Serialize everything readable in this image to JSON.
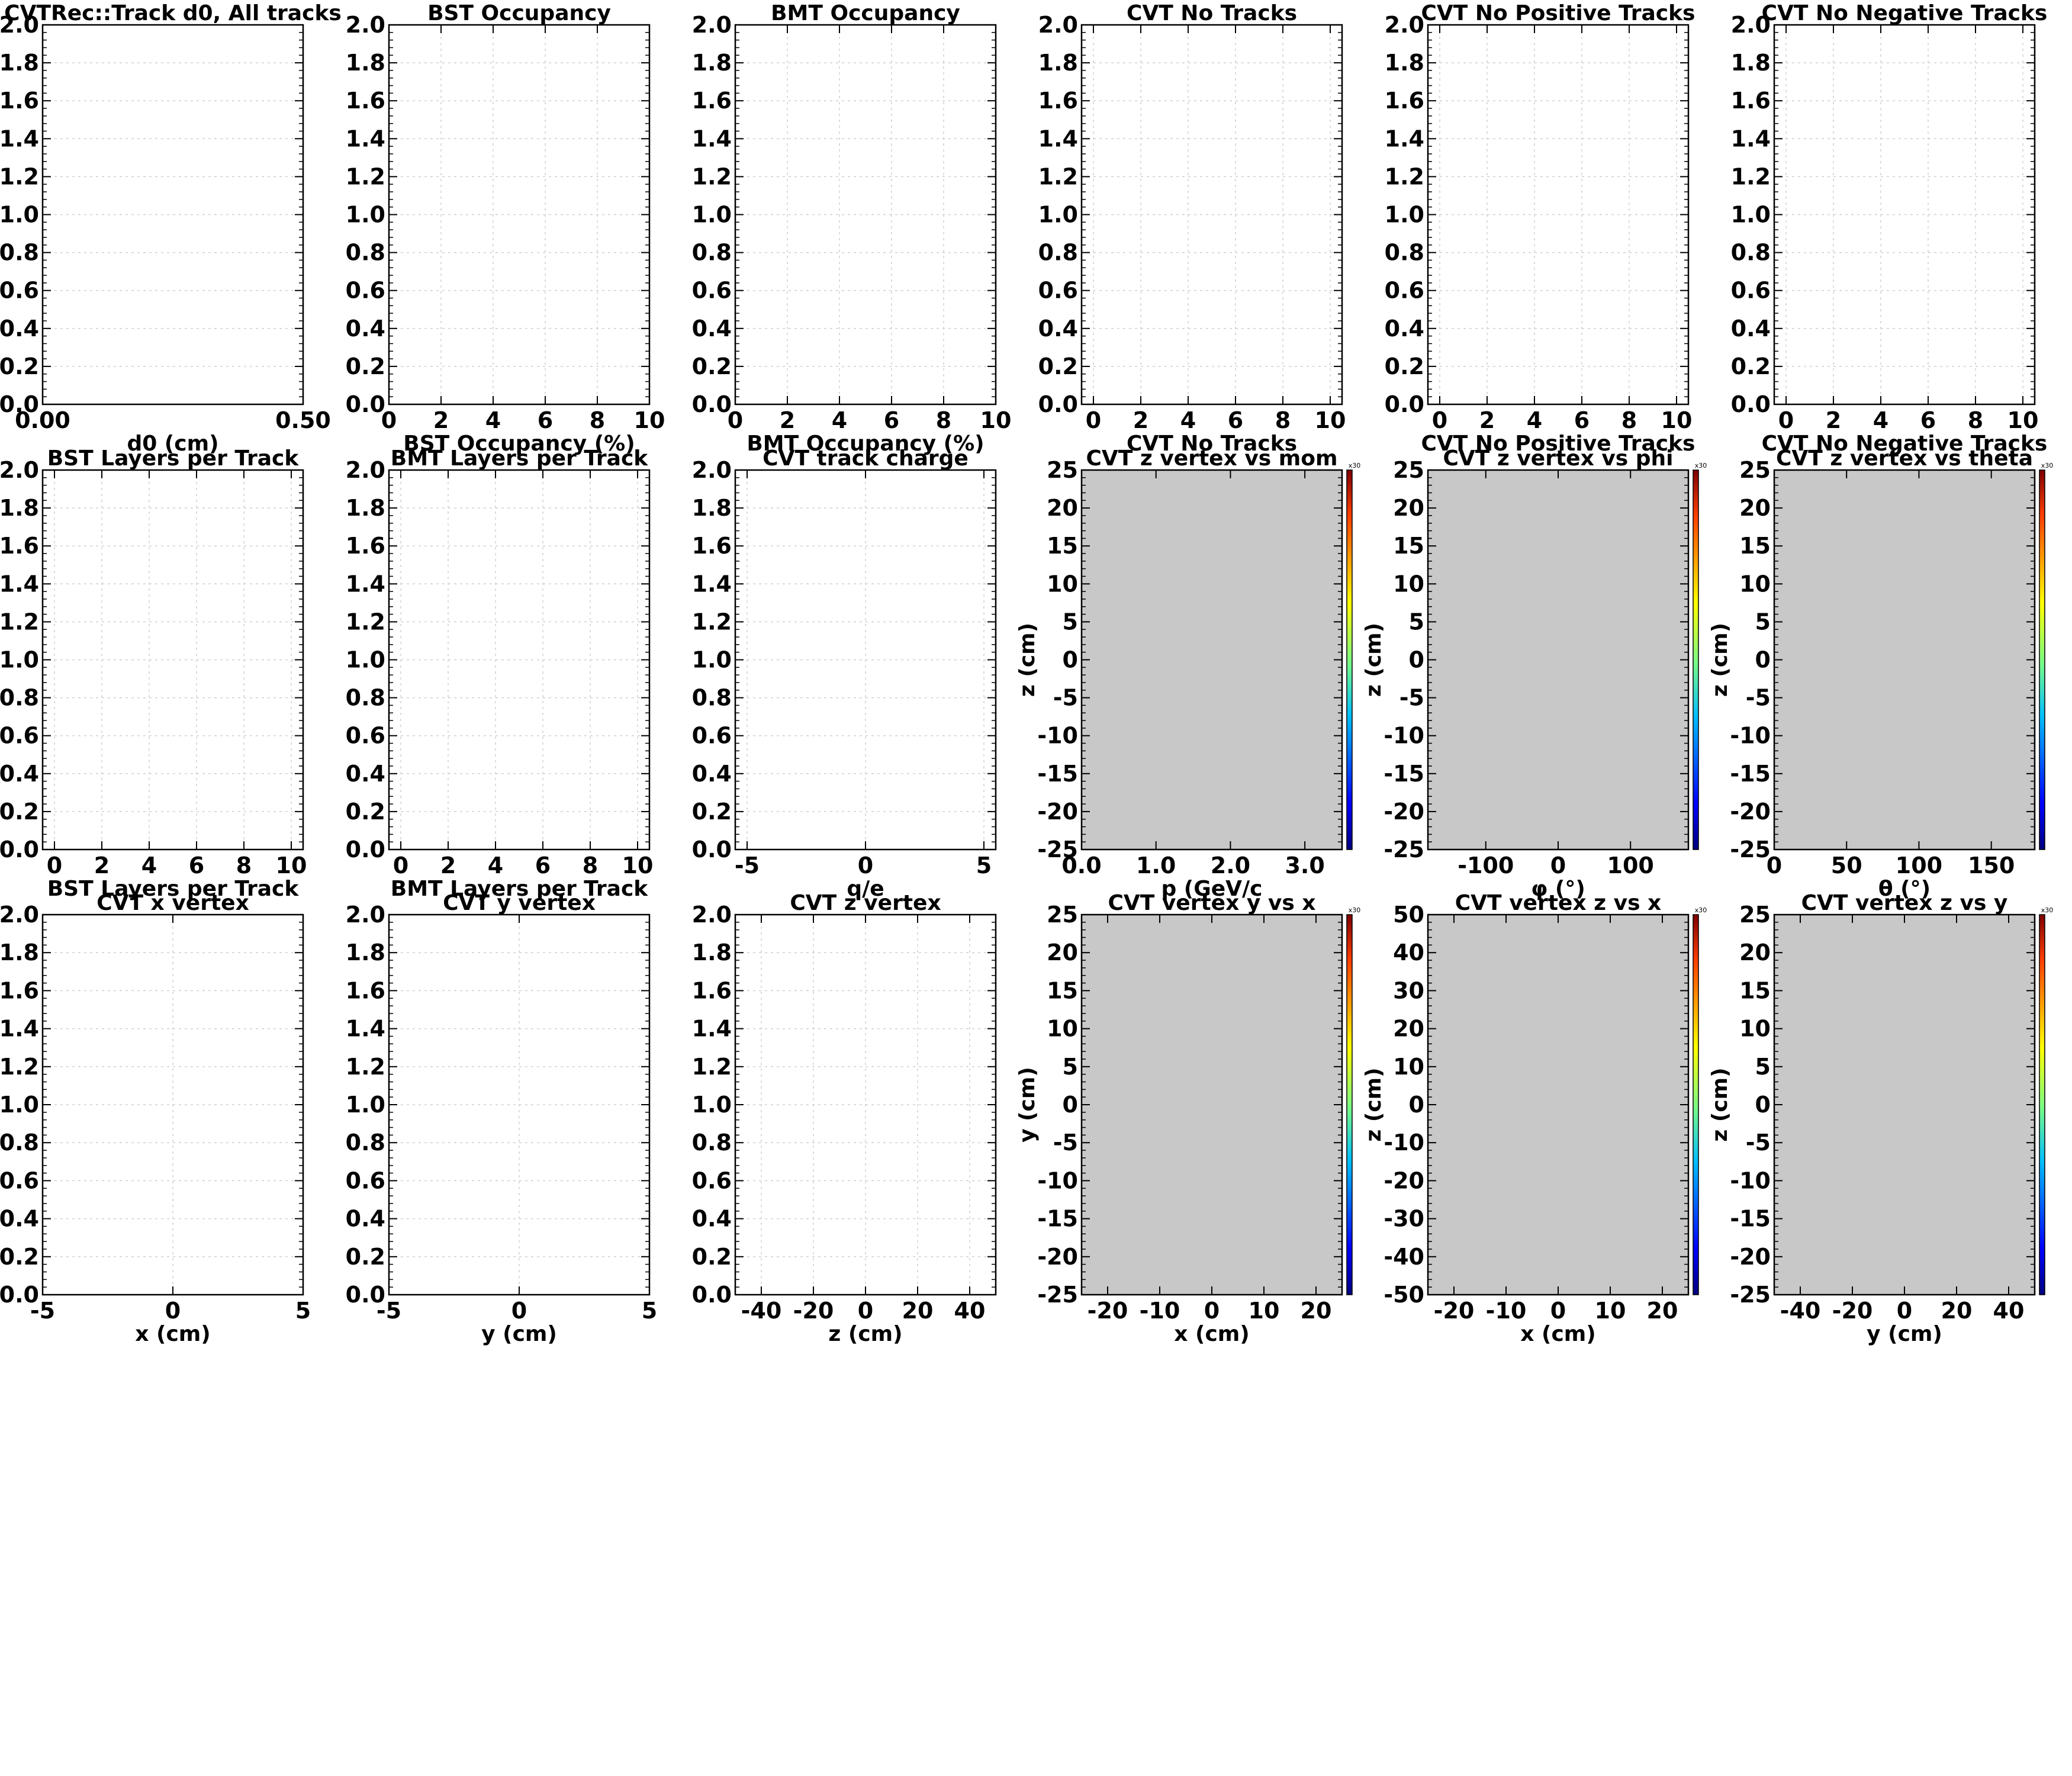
{
  "chart_data": [
    {
      "type": "bar",
      "title": "CVTRec::Track d0, All tracks",
      "xlabel": "d0 (cm)",
      "ylabel": "",
      "xlim": [
        0,
        0.5
      ],
      "ylim": [
        0,
        2
      ],
      "xticks": [
        "0.00",
        "0.50"
      ],
      "yticks": [
        "0.0",
        "0.2",
        "0.4",
        "0.6",
        "0.8",
        "1.0",
        "1.2",
        "1.4",
        "1.6",
        "1.8",
        "2.0"
      ],
      "grid": true,
      "values": []
    },
    {
      "type": "bar",
      "title": "BST Occupancy",
      "xlabel": "BST Occupancy (%)",
      "ylabel": "",
      "xlim": [
        0,
        10
      ],
      "ylim": [
        0,
        2
      ],
      "xticks": [
        "0",
        "2",
        "4",
        "6",
        "8",
        "10"
      ],
      "yticks": [
        "0.0",
        "0.2",
        "0.4",
        "0.6",
        "0.8",
        "1.0",
        "1.2",
        "1.4",
        "1.6",
        "1.8",
        "2.0"
      ],
      "grid": true,
      "values": []
    },
    {
      "type": "bar",
      "title": "BMT Occupancy",
      "xlabel": "BMT Occupancy (%)",
      "ylabel": "",
      "xlim": [
        0,
        10
      ],
      "ylim": [
        0,
        2
      ],
      "xticks": [
        "0",
        "2",
        "4",
        "6",
        "8",
        "10"
      ],
      "yticks": [
        "0.0",
        "0.2",
        "0.4",
        "0.6",
        "0.8",
        "1.0",
        "1.2",
        "1.4",
        "1.6",
        "1.8",
        "2.0"
      ],
      "grid": true,
      "values": []
    },
    {
      "type": "bar",
      "title": "CVT No Tracks",
      "xlabel": "CVT No Tracks",
      "ylabel": "",
      "xlim": [
        -0.5,
        10.5
      ],
      "ylim": [
        0,
        2
      ],
      "xticks": [
        "0",
        "2",
        "4",
        "6",
        "8",
        "10"
      ],
      "yticks": [
        "0.0",
        "0.2",
        "0.4",
        "0.6",
        "0.8",
        "1.0",
        "1.2",
        "1.4",
        "1.6",
        "1.8",
        "2.0"
      ],
      "grid": true,
      "values": []
    },
    {
      "type": "bar",
      "title": "CVT No Positive Tracks",
      "xlabel": "CVT No Positive Tracks",
      "ylabel": "",
      "xlim": [
        -0.5,
        10.5
      ],
      "ylim": [
        0,
        2
      ],
      "xticks": [
        "0",
        "2",
        "4",
        "6",
        "8",
        "10"
      ],
      "yticks": [
        "0.0",
        "0.2",
        "0.4",
        "0.6",
        "0.8",
        "1.0",
        "1.2",
        "1.4",
        "1.6",
        "1.8",
        "2.0"
      ],
      "grid": true,
      "values": []
    },
    {
      "type": "bar",
      "title": "CVT No Negative Tracks",
      "xlabel": "CVT No Negative Tracks",
      "ylabel": "",
      "xlim": [
        -0.5,
        10.5
      ],
      "ylim": [
        0,
        2
      ],
      "xticks": [
        "0",
        "2",
        "4",
        "6",
        "8",
        "10"
      ],
      "yticks": [
        "0.0",
        "0.2",
        "0.4",
        "0.6",
        "0.8",
        "1.0",
        "1.2",
        "1.4",
        "1.6",
        "1.8",
        "2.0"
      ],
      "grid": true,
      "values": []
    },
    {
      "type": "bar",
      "title": "BST Layers per Track",
      "xlabel": "BST Layers per Track",
      "ylabel": "",
      "xlim": [
        -0.5,
        10.5
      ],
      "ylim": [
        0,
        2
      ],
      "xticks": [
        "0",
        "2",
        "4",
        "6",
        "8",
        "10"
      ],
      "yticks": [
        "0.0",
        "0.2",
        "0.4",
        "0.6",
        "0.8",
        "1.0",
        "1.2",
        "1.4",
        "1.6",
        "1.8",
        "2.0"
      ],
      "grid": true,
      "values": []
    },
    {
      "type": "bar",
      "title": "BMT Layers per Track",
      "xlabel": "BMT Layers per Track",
      "ylabel": "",
      "xlim": [
        -0.5,
        10.5
      ],
      "ylim": [
        0,
        2
      ],
      "xticks": [
        "0",
        "2",
        "4",
        "6",
        "8",
        "10"
      ],
      "yticks": [
        "0.0",
        "0.2",
        "0.4",
        "0.6",
        "0.8",
        "1.0",
        "1.2",
        "1.4",
        "1.6",
        "1.8",
        "2.0"
      ],
      "grid": true,
      "values": []
    },
    {
      "type": "bar",
      "title": "CVT track charge",
      "xlabel": "q/e",
      "ylabel": "",
      "xlim": [
        -5.5,
        5.5
      ],
      "ylim": [
        0,
        2
      ],
      "xticks": [
        "-5",
        "0",
        "5"
      ],
      "yticks": [
        "0.0",
        "0.2",
        "0.4",
        "0.6",
        "0.8",
        "1.0",
        "1.2",
        "1.4",
        "1.6",
        "1.8",
        "2.0"
      ],
      "grid": true,
      "values": []
    },
    {
      "type": "heatmap",
      "title": "CVT z vertex vs mom",
      "xlabel": "p (GeV/c",
      "ylabel": "z (cm)",
      "xlim": [
        0,
        3.5
      ],
      "ylim": [
        -25,
        25
      ],
      "xticks": [
        "0.0",
        "1.0",
        "2.0",
        "3.0"
      ],
      "yticks": [
        "-25",
        "-20",
        "-15",
        "-10",
        "-5",
        "0",
        "5",
        "10",
        "15",
        "20",
        "25"
      ],
      "colorbar_label": "x30",
      "values": []
    },
    {
      "type": "heatmap",
      "title": "CVT z vertex vs phi",
      "xlabel": "φ (°)",
      "ylabel": "z (cm)",
      "xlim": [
        -180,
        180
      ],
      "ylim": [
        -25,
        25
      ],
      "xticks": [
        "-100",
        "0",
        "100"
      ],
      "yticks": [
        "-25",
        "-20",
        "-15",
        "-10",
        "-5",
        "0",
        "5",
        "10",
        "15",
        "20",
        "25"
      ],
      "colorbar_label": "x30",
      "values": []
    },
    {
      "type": "heatmap",
      "title": "CVT z vertex vs theta",
      "xlabel": "θ (°)",
      "ylabel": "z (cm)",
      "xlim": [
        0,
        180
      ],
      "ylim": [
        -25,
        25
      ],
      "xticks": [
        "0",
        "50",
        "100",
        "150"
      ],
      "yticks": [
        "-25",
        "-20",
        "-15",
        "-10",
        "-5",
        "0",
        "5",
        "10",
        "15",
        "20",
        "25"
      ],
      "colorbar_label": "x30",
      "values": []
    },
    {
      "type": "bar",
      "title": "CVT x vertex",
      "xlabel": "x (cm)",
      "ylabel": "",
      "xlim": [
        -5,
        5
      ],
      "ylim": [
        0,
        2
      ],
      "xticks": [
        "-5",
        "0",
        "5"
      ],
      "yticks": [
        "0.0",
        "0.2",
        "0.4",
        "0.6",
        "0.8",
        "1.0",
        "1.2",
        "1.4",
        "1.6",
        "1.8",
        "2.0"
      ],
      "grid": true,
      "values": []
    },
    {
      "type": "bar",
      "title": "CVT y vertex",
      "xlabel": "y (cm)",
      "ylabel": "",
      "xlim": [
        -5,
        5
      ],
      "ylim": [
        0,
        2
      ],
      "xticks": [
        "-5",
        "0",
        "5"
      ],
      "yticks": [
        "0.0",
        "0.2",
        "0.4",
        "0.6",
        "0.8",
        "1.0",
        "1.2",
        "1.4",
        "1.6",
        "1.8",
        "2.0"
      ],
      "grid": true,
      "values": []
    },
    {
      "type": "bar",
      "title": "CVT z vertex",
      "xlabel": "z (cm)",
      "ylabel": "",
      "xlim": [
        -50,
        50
      ],
      "ylim": [
        0,
        2
      ],
      "xticks": [
        "-40",
        "-20",
        "0",
        "20",
        "40"
      ],
      "yticks": [
        "0.0",
        "0.2",
        "0.4",
        "0.6",
        "0.8",
        "1.0",
        "1.2",
        "1.4",
        "1.6",
        "1.8",
        "2.0"
      ],
      "grid": true,
      "values": []
    },
    {
      "type": "heatmap",
      "title": "CVT vertex  y vs x",
      "xlabel": "x (cm)",
      "ylabel": "y (cm)",
      "xlim": [
        -25,
        25
      ],
      "ylim": [
        -25,
        25
      ],
      "xticks": [
        "-20",
        "-10",
        "0",
        "10",
        "20"
      ],
      "yticks": [
        "-25",
        "-20",
        "-15",
        "-10",
        "-5",
        "0",
        "5",
        "10",
        "15",
        "20",
        "25"
      ],
      "colorbar_label": "x30",
      "values": []
    },
    {
      "type": "heatmap",
      "title": "CVT vertex z vs x",
      "xlabel": "x (cm)",
      "ylabel": "z (cm)",
      "xlim": [
        -25,
        25
      ],
      "ylim": [
        -50,
        50
      ],
      "xticks": [
        "-20",
        "-10",
        "0",
        "10",
        "20"
      ],
      "yticks": [
        "-50",
        "-40",
        "-30",
        "-20",
        "-10",
        "0",
        "10",
        "20",
        "30",
        "40",
        "50"
      ],
      "colorbar_label": "x30",
      "values": []
    },
    {
      "type": "heatmap",
      "title": "CVT vertex z vs y",
      "xlabel": "y (cm)",
      "ylabel": "z (cm)",
      "xlim": [
        -50,
        50
      ],
      "ylim": [
        -25,
        25
      ],
      "xticks": [
        "-40",
        "-20",
        "0",
        "20",
        "40"
      ],
      "yticks": [
        "-25",
        "-20",
        "-15",
        "-10",
        "-5",
        "0",
        "5",
        "10",
        "15",
        "20",
        "25"
      ],
      "colorbar_label": "x30",
      "values": []
    }
  ]
}
